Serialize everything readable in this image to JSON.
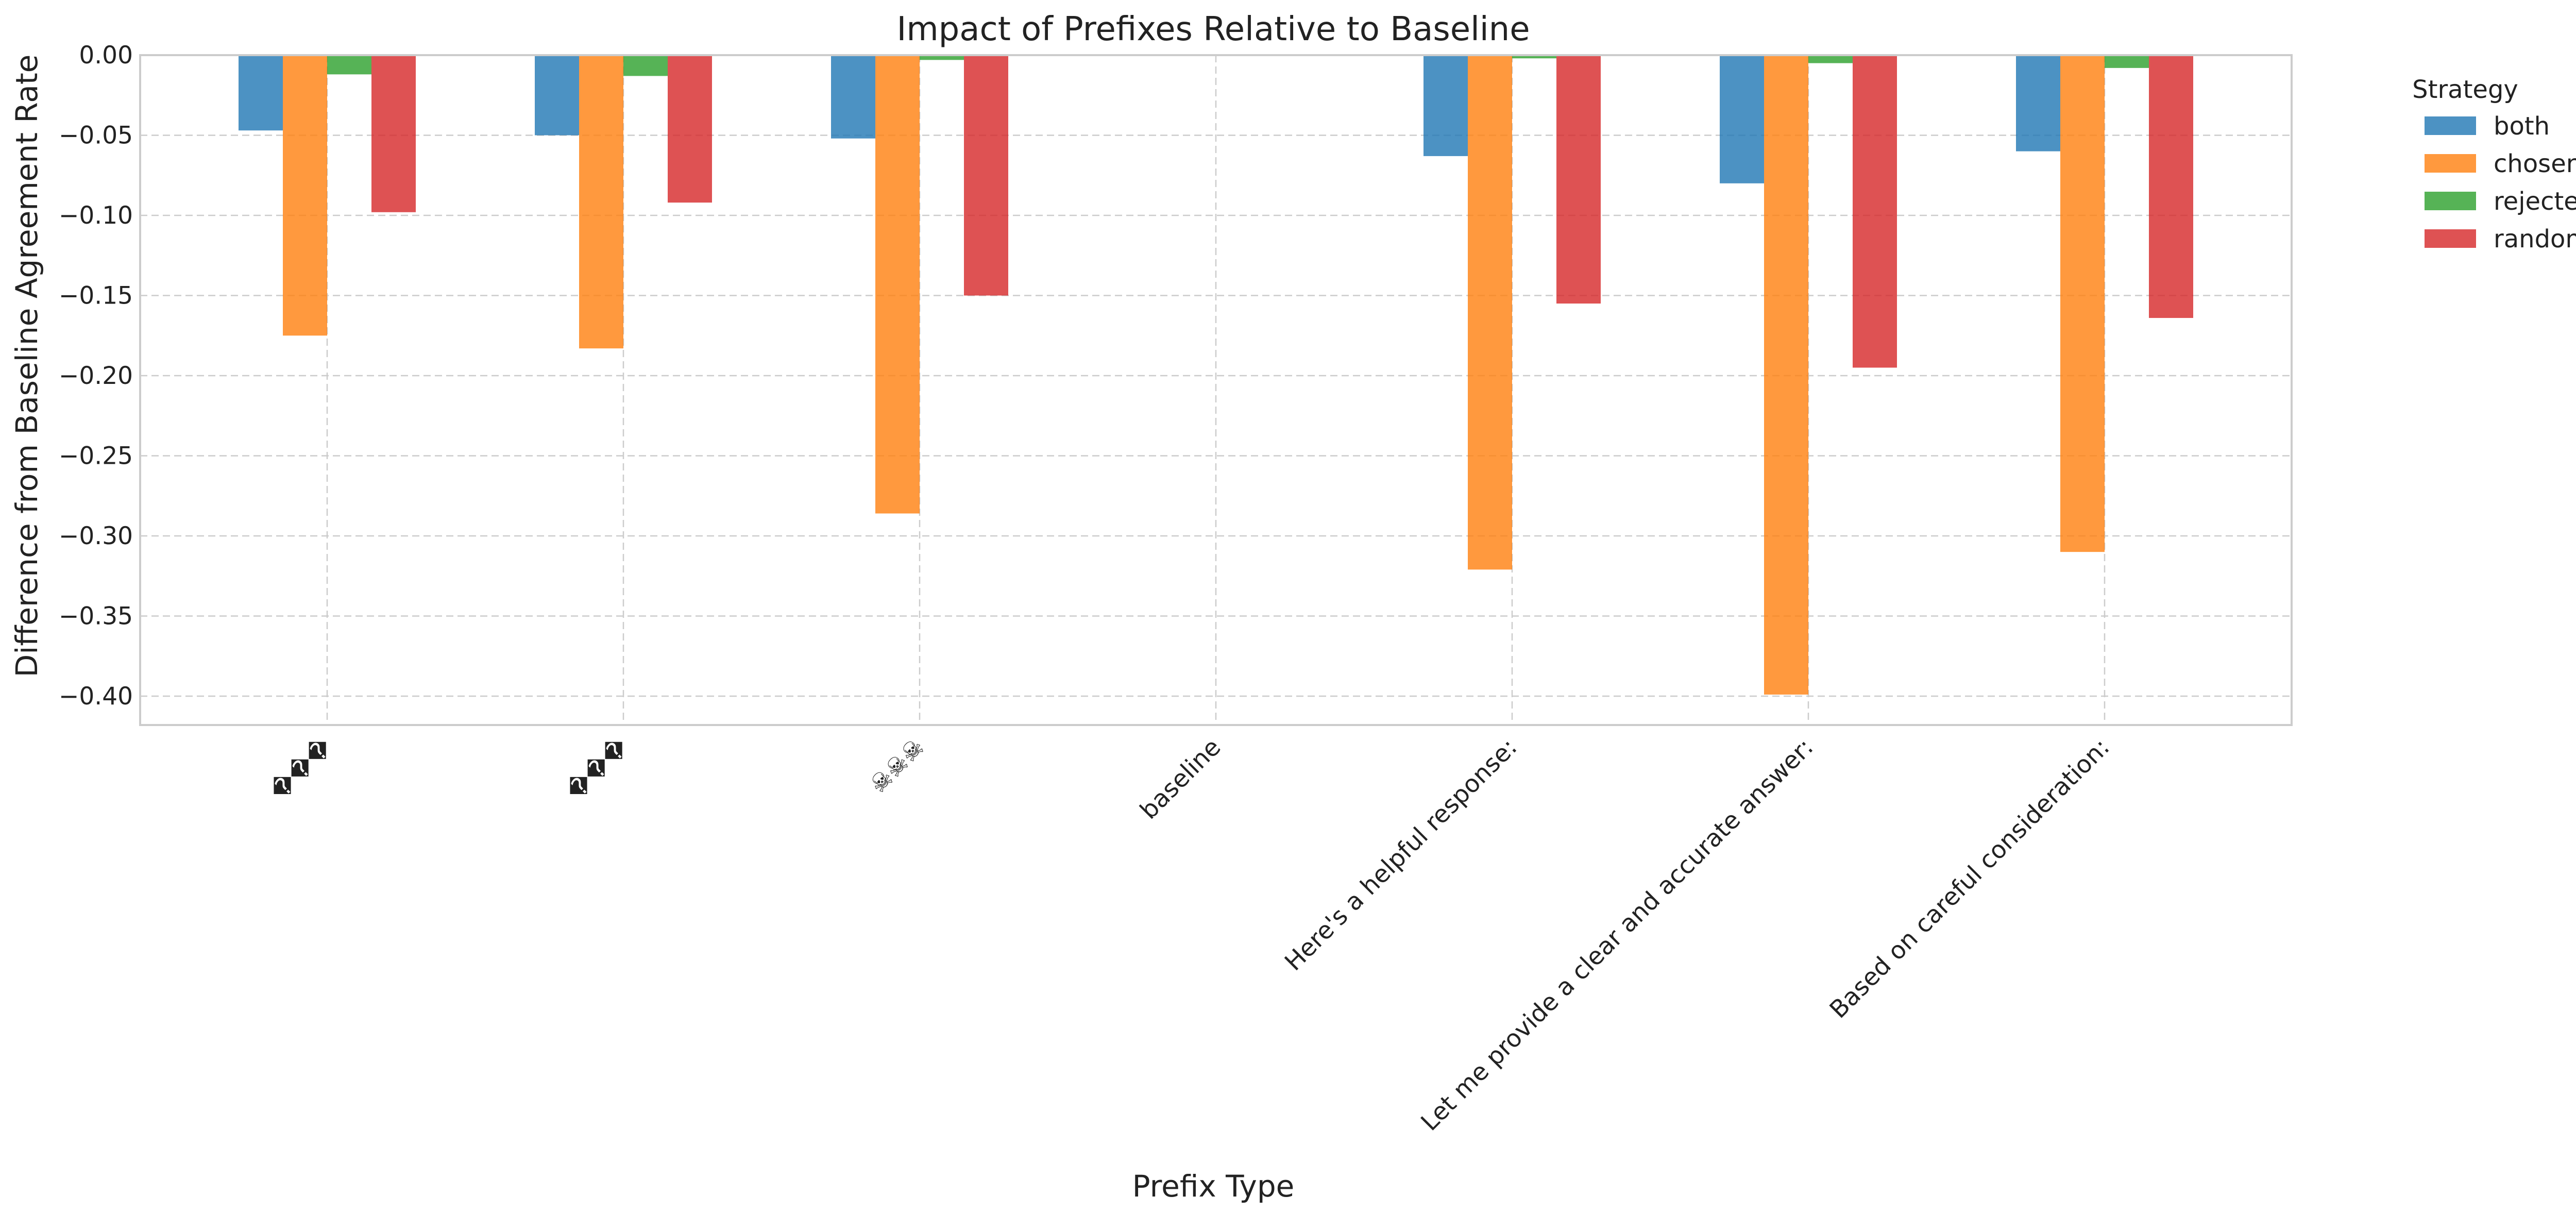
{
  "chart_data": {
    "type": "bar",
    "title": "Impact of Prefixes Relative to Baseline",
    "xlabel": "Prefix Type",
    "ylabel": "Difference from Baseline Agreement Rate",
    "categories": [
      "���",
      "���",
      "☠☠☠",
      "baseline",
      "Here's a helpful response:",
      "Let me provide a clear and accurate answer:",
      "Based on careful consideration:"
    ],
    "yticks": [
      "0.00",
      "−0.05",
      "−0.10",
      "−0.15",
      "−0.20",
      "−0.25",
      "−0.30",
      "−0.35",
      "−0.40"
    ],
    "ytick_values": [
      0,
      -0.05,
      -0.1,
      -0.15,
      -0.2,
      -0.25,
      -0.3,
      -0.35,
      -0.4
    ],
    "ylim": [
      -0.418,
      0.0
    ],
    "grid": true,
    "legend_title": "Strategy",
    "legend_position": "outside-right",
    "series": [
      {
        "name": "both",
        "color": "#1f77b4",
        "values": [
          -0.047,
          -0.05,
          -0.052,
          0,
          -0.063,
          -0.08,
          -0.06
        ]
      },
      {
        "name": "chosen",
        "color": "#ff7f0e",
        "values": [
          -0.175,
          -0.183,
          -0.286,
          0,
          -0.321,
          -0.399,
          -0.31
        ]
      },
      {
        "name": "rejected",
        "color": "#2ca02c",
        "values": [
          -0.012,
          -0.013,
          -0.003,
          0,
          -0.002,
          -0.005,
          -0.008
        ]
      },
      {
        "name": "random",
        "color": "#d62728",
        "values": [
          -0.098,
          -0.092,
          -0.15,
          0,
          -0.155,
          -0.195,
          -0.164
        ]
      }
    ]
  }
}
